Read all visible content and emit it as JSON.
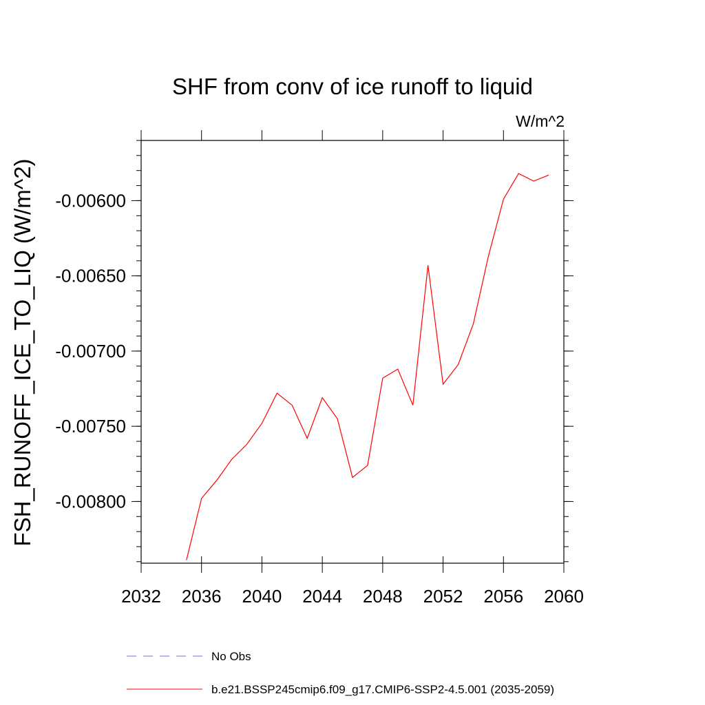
{
  "chart_data": {
    "type": "line",
    "title": "SHF from conv of ice runoff to liquid",
    "units_label": "W/m^2",
    "xlabel": "",
    "ylabel": "FSH_RUNOFF_ICE_TO_LIQ  (W/m^2)",
    "xlim": [
      2032,
      2060
    ],
    "ylim": [
      -0.00841,
      -0.0056
    ],
    "x_ticks": [
      2032,
      2036,
      2040,
      2044,
      2048,
      2052,
      2056,
      2060
    ],
    "x_tick_labels": [
      "2032",
      "2036",
      "2040",
      "2044",
      "2048",
      "2052",
      "2056",
      "2060"
    ],
    "y_ticks": [
      -0.008,
      -0.0075,
      -0.007,
      -0.0065,
      -0.006
    ],
    "y_tick_labels": [
      "-0.00800",
      "-0.00750",
      "-0.00700",
      "-0.00650",
      "-0.00600"
    ],
    "grid": false,
    "legend_position": "bottom",
    "series": [
      {
        "name": "No Obs",
        "color": "#6f6fd8",
        "dash": "dashed",
        "x": [],
        "y": []
      },
      {
        "name": "b.e21.BSSP245cmip6.f09_g17.CMIP6-SSP2-4.5.001 (2035-2059)",
        "color": "#ff0000",
        "dash": "solid",
        "x": [
          2035,
          2036,
          2037,
          2038,
          2039,
          2040,
          2041,
          2042,
          2043,
          2044,
          2045,
          2046,
          2047,
          2048,
          2049,
          2050,
          2051,
          2052,
          2053,
          2054,
          2055,
          2056,
          2057,
          2058,
          2059
        ],
        "y": [
          -0.00839,
          -0.00798,
          -0.00786,
          -0.00772,
          -0.00762,
          -0.00748,
          -0.00728,
          -0.00736,
          -0.00758,
          -0.00731,
          -0.00745,
          -0.00784,
          -0.00776,
          -0.00718,
          -0.00712,
          -0.00736,
          -0.00643,
          -0.00722,
          -0.00709,
          -0.00682,
          -0.00637,
          -0.00599,
          -0.00582,
          -0.00587,
          -0.00583
        ]
      }
    ]
  }
}
